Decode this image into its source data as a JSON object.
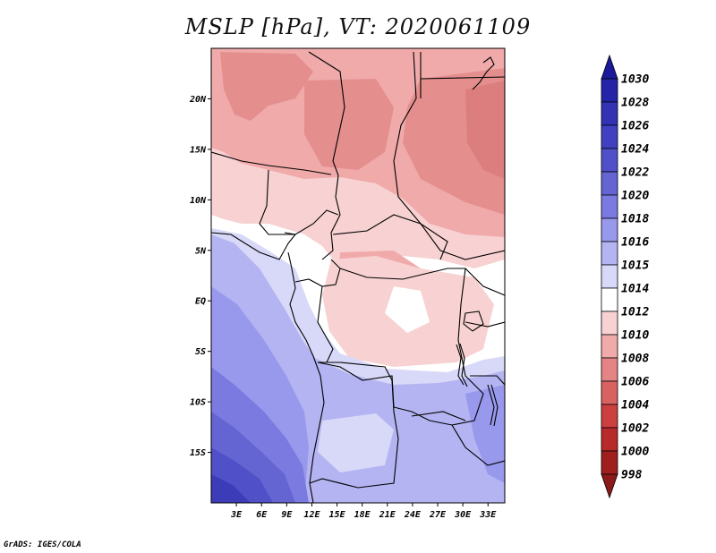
{
  "title": "MSLP [hPa], VT: 2020061109",
  "credit": "GrADS: IGES/COLA",
  "map": {
    "lon_range": [
      0,
      35
    ],
    "lat_range": [
      -20,
      25
    ],
    "x_ticks": [
      {
        "value": 3,
        "label": "3E"
      },
      {
        "value": 6,
        "label": "6E"
      },
      {
        "value": 9,
        "label": "9E"
      },
      {
        "value": 12,
        "label": "12E"
      },
      {
        "value": 15,
        "label": "15E"
      },
      {
        "value": 18,
        "label": "18E"
      },
      {
        "value": 21,
        "label": "21E"
      },
      {
        "value": 24,
        "label": "24E"
      },
      {
        "value": 27,
        "label": "27E"
      },
      {
        "value": 30,
        "label": "30E"
      },
      {
        "value": 33,
        "label": "33E"
      }
    ],
    "y_ticks": [
      {
        "value": 20,
        "label": "20N"
      },
      {
        "value": 15,
        "label": "15N"
      },
      {
        "value": 10,
        "label": "10N"
      },
      {
        "value": 5,
        "label": "5N"
      },
      {
        "value": 0,
        "label": "EQ"
      },
      {
        "value": -5,
        "label": "5S"
      },
      {
        "value": -10,
        "label": "10S"
      },
      {
        "value": -15,
        "label": "15S"
      }
    ]
  },
  "colorbar": {
    "levels": [
      "1030",
      "1028",
      "1026",
      "1024",
      "1022",
      "1020",
      "1018",
      "1016",
      "1015",
      "1014",
      "1012",
      "1010",
      "1008",
      "1006",
      "1004",
      "1002",
      "1000",
      "998"
    ],
    "colors": [
      "#1a1a9a",
      "#2424a8",
      "#3232b4",
      "#4040c0",
      "#5050c8",
      "#6464d2",
      "#7a7ae0",
      "#9898ec",
      "#b4b4f2",
      "#d8d8f8",
      "#ffffff",
      "#f8d2d2",
      "#f0aaaa",
      "#e48484",
      "#d86262",
      "#cc4040",
      "#b82a2a",
      "#a01e1e",
      "#8c1a1a"
    ]
  }
}
